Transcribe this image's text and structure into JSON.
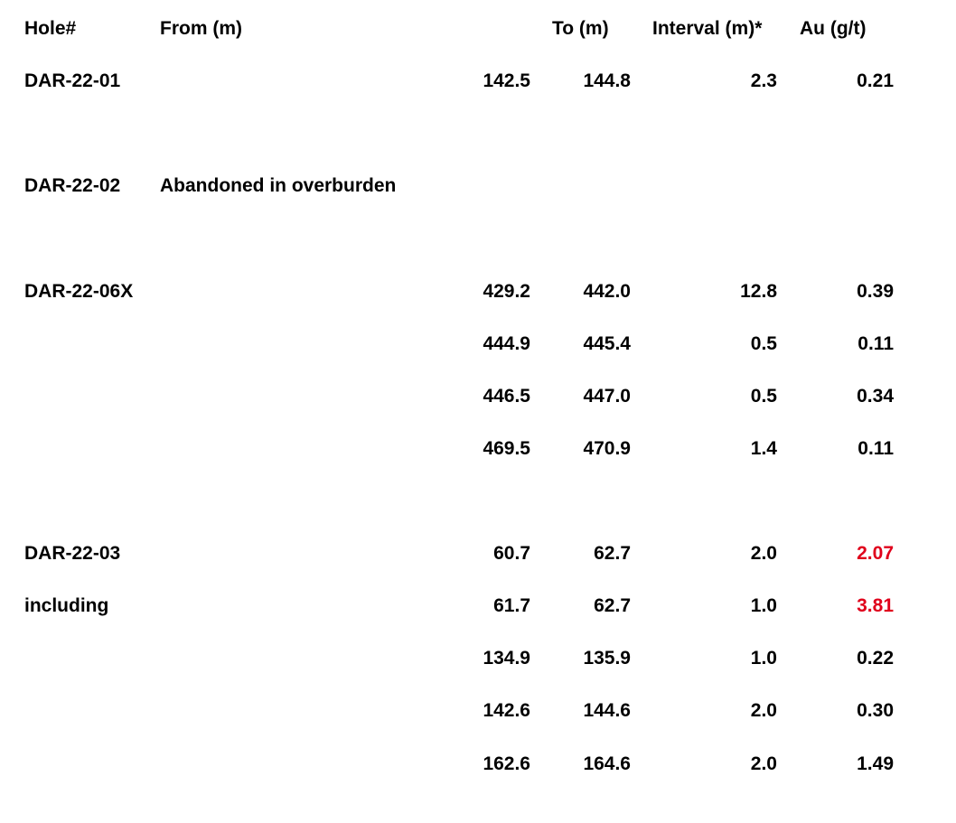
{
  "headers": {
    "hole": "Hole#",
    "from": "From (m)",
    "to": "To (m)",
    "interval": "Interval (m)*",
    "au": "Au (g/t)"
  },
  "highlight_color": "#e0001b",
  "rows": [
    {
      "hole": "DAR-22-01",
      "note": "",
      "from": "142.5",
      "to": "144.8",
      "interval": "2.3",
      "au": "0.21",
      "highlight": false
    },
    {
      "hole": "DAR-22-02",
      "note": "Abandoned in overburden",
      "from": "",
      "to": "",
      "interval": "",
      "au": "",
      "highlight": false
    },
    {
      "hole": "DAR-22-06X",
      "note": "",
      "from": "429.2",
      "to": "442.0",
      "interval": "12.8",
      "au": "0.39",
      "highlight": false
    },
    {
      "hole": "",
      "note": "",
      "from": "444.9",
      "to": "445.4",
      "interval": "0.5",
      "au": "0.11",
      "highlight": false
    },
    {
      "hole": "",
      "note": "",
      "from": "446.5",
      "to": "447.0",
      "interval": "0.5",
      "au": "0.34",
      "highlight": false
    },
    {
      "hole": "",
      "note": "",
      "from": "469.5",
      "to": "470.9",
      "interval": "1.4",
      "au": "0.11",
      "highlight": false
    },
    {
      "hole": "DAR-22-03",
      "note": "",
      "from": "60.7",
      "to": "62.7",
      "interval": "2.0",
      "au": "2.07",
      "highlight": true
    },
    {
      "hole": "including",
      "note": "",
      "from": "61.7",
      "to": "62.7",
      "interval": "1.0",
      "au": "3.81",
      "highlight": true
    },
    {
      "hole": "",
      "note": "",
      "from": "134.9",
      "to": "135.9",
      "interval": "1.0",
      "au": "0.22",
      "highlight": false
    },
    {
      "hole": "",
      "note": "",
      "from": "142.6",
      "to": "144.6",
      "interval": "2.0",
      "au": "0.30",
      "highlight": false
    },
    {
      "hole": "",
      "note": "",
      "from": "162.6",
      "to": "164.6",
      "interval": "2.0",
      "au": "1.49",
      "highlight": false
    }
  ]
}
